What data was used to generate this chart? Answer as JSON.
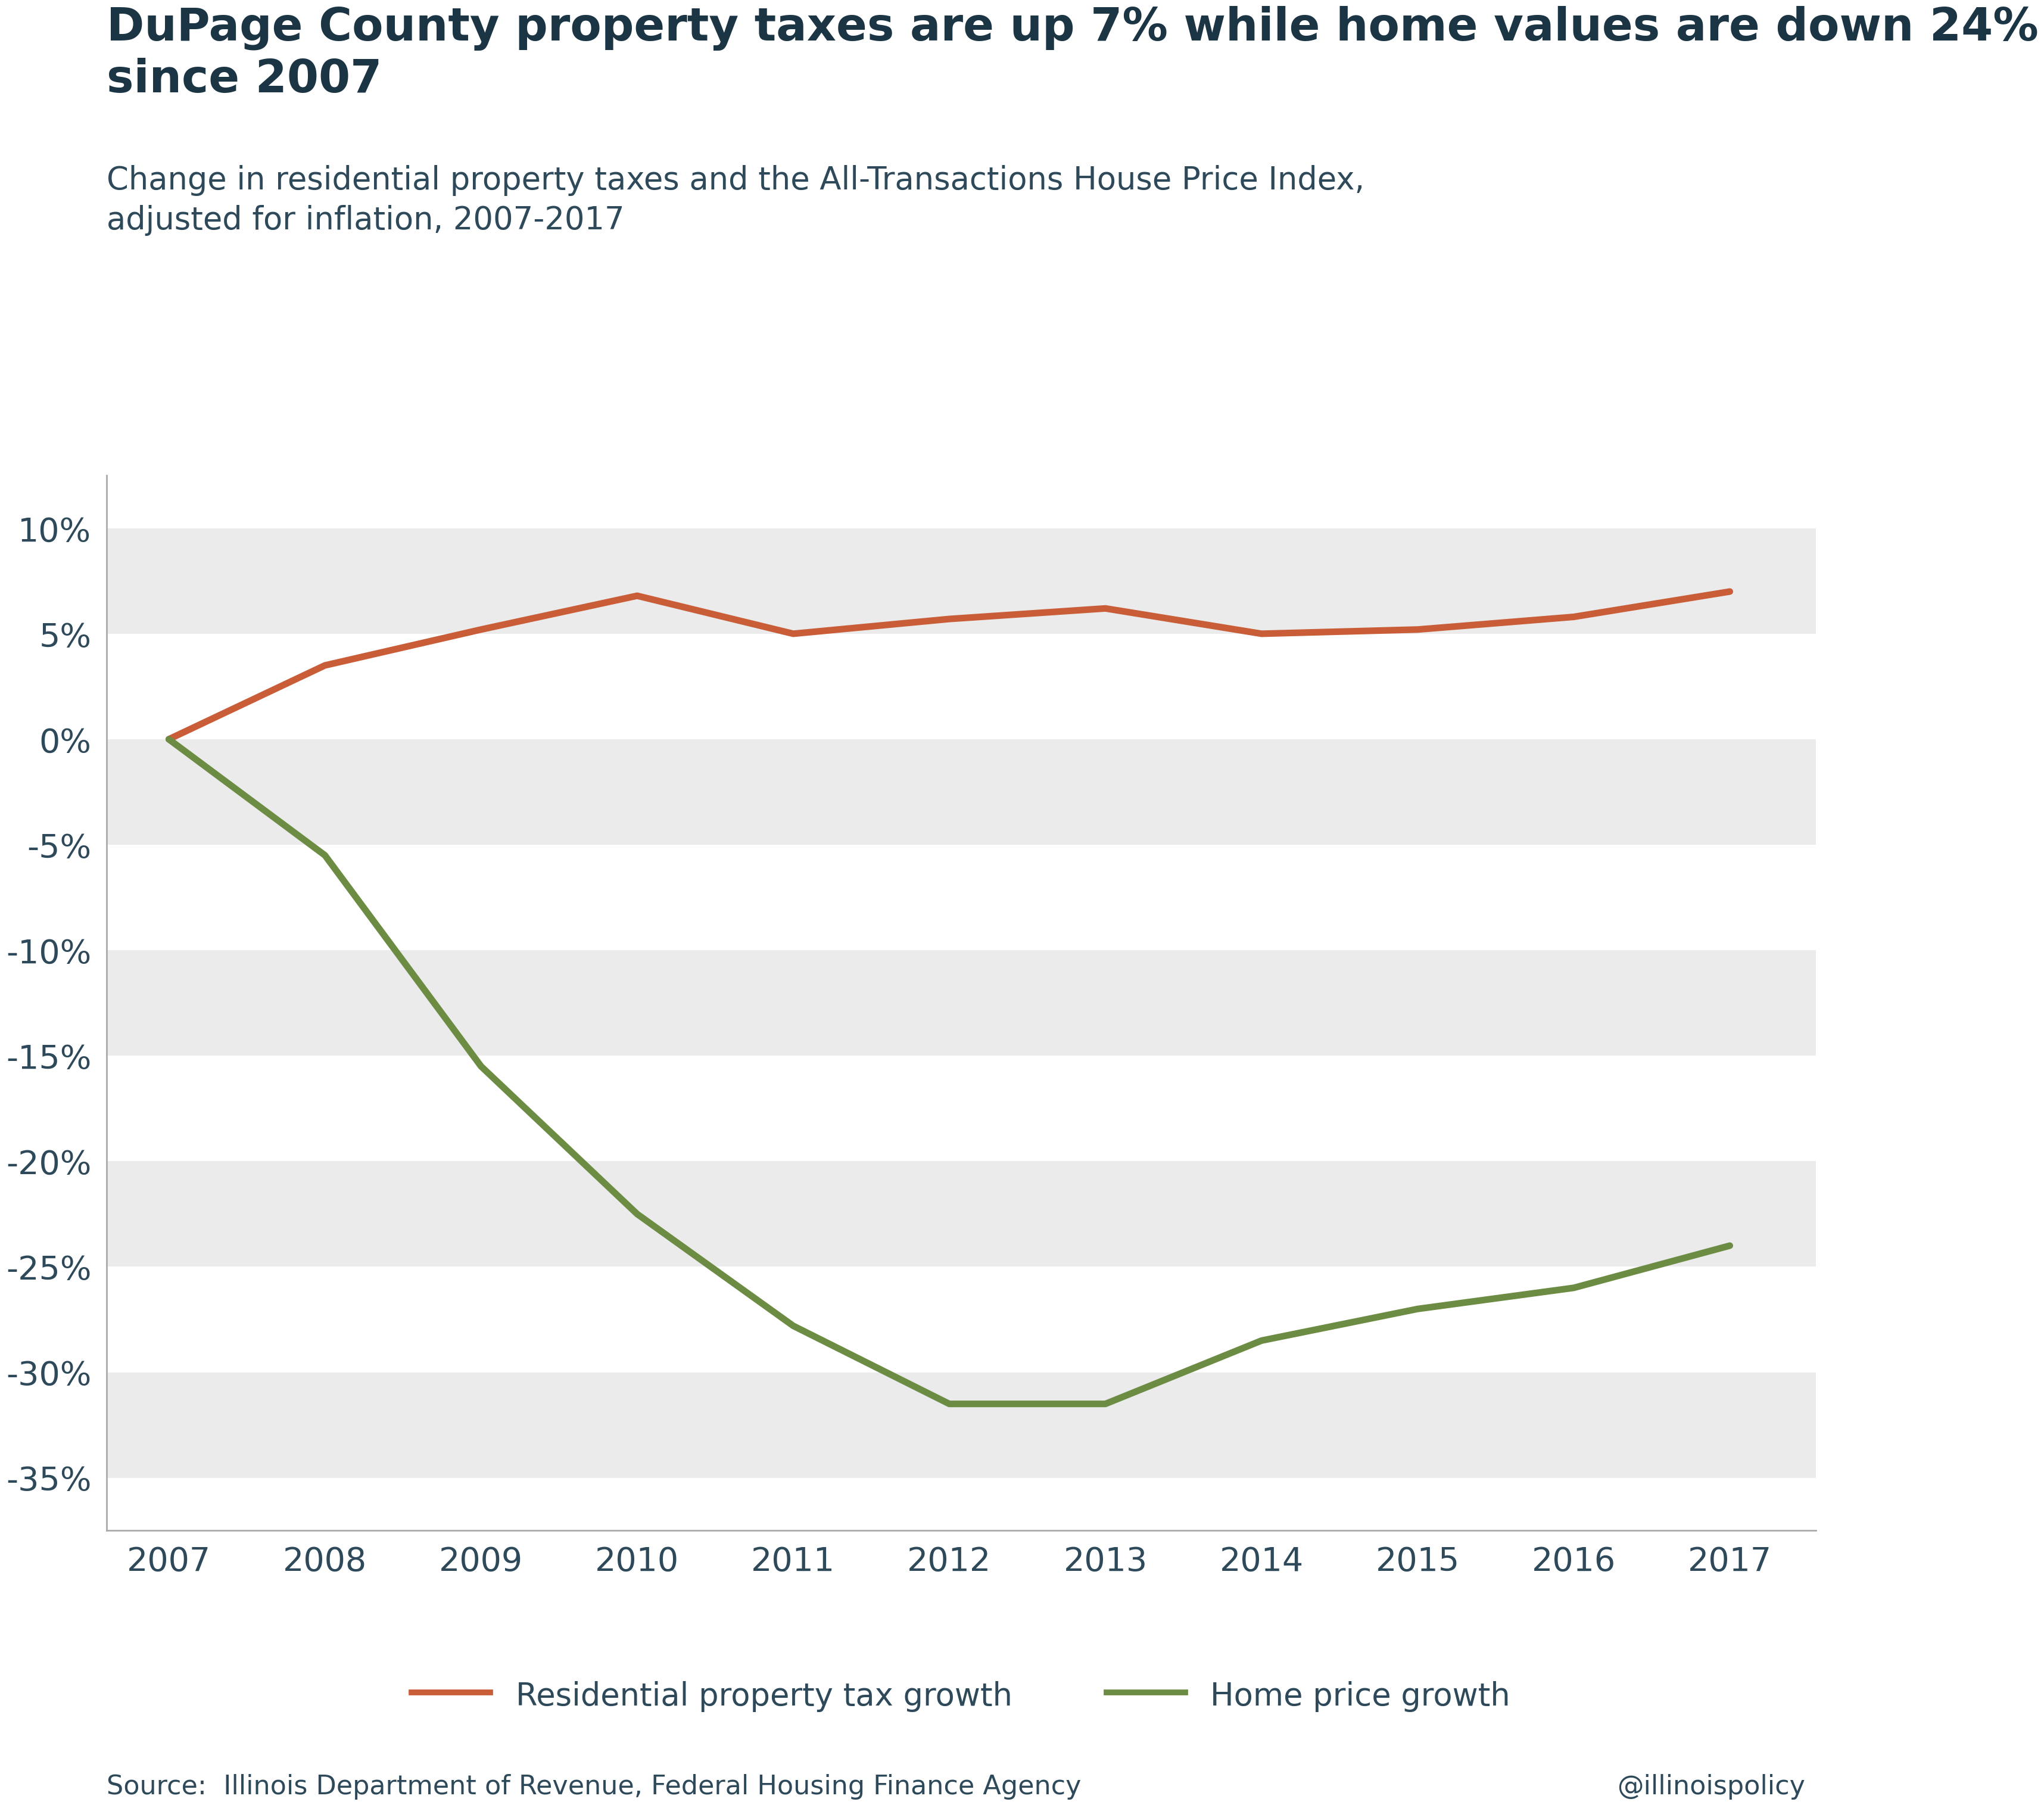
{
  "title_bold": "DuPage County property taxes are up 7% while home values are down 24%\nsince 2007",
  "subtitle": "Change in residential property taxes and the All-Transactions House Price Index,\nadjusted for inflation, 2007-2017",
  "years": [
    2007,
    2008,
    2009,
    2010,
    2011,
    2012,
    2013,
    2014,
    2015,
    2016,
    2017
  ],
  "tax_values": [
    0.0,
    0.035,
    0.052,
    0.068,
    0.05,
    0.057,
    0.062,
    0.05,
    0.052,
    0.058,
    0.07
  ],
  "home_values": [
    0.0,
    -0.055,
    -0.155,
    -0.225,
    -0.278,
    -0.315,
    -0.315,
    -0.285,
    -0.27,
    -0.26,
    -0.24
  ],
  "tax_color": "#C85D38",
  "home_color": "#6B8C42",
  "background_color": "#FFFFFF",
  "band_color": "#EBEBEB",
  "ylim": [
    -0.375,
    0.125
  ],
  "yticks": [
    0.1,
    0.05,
    0.0,
    -0.05,
    -0.1,
    -0.15,
    -0.2,
    -0.25,
    -0.3,
    -0.35
  ],
  "band_tops": [
    0.1,
    0.0,
    -0.1,
    -0.2,
    -0.3
  ],
  "band_bottoms": [
    0.05,
    -0.05,
    -0.15,
    -0.25,
    -0.35
  ],
  "tick_label_color": "#2E4A5A",
  "axis_color": "#AAAAAA",
  "title_color": "#1C3545",
  "subtitle_color": "#2E4A5A",
  "legend_tax_label": "Residential property tax growth",
  "legend_home_label": "Home price growth",
  "source_text": "Source:  Illinois Department of Revenue, Federal Housing Finance Agency",
  "handle_text": "@illinoispolicy",
  "line_width": 8.0
}
